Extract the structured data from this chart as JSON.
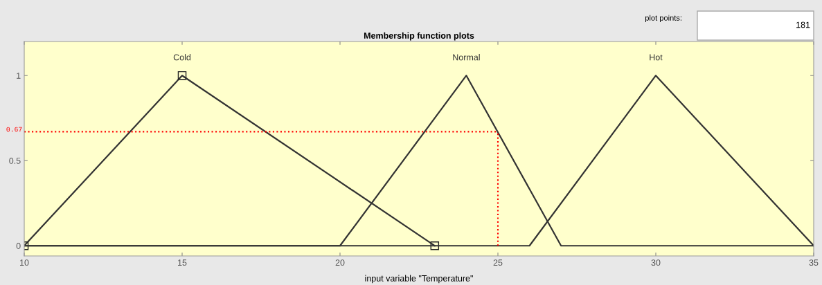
{
  "chart_data": {
    "type": "line",
    "title": "Membership function plots",
    "xlabel": "input variable \"Temperature\"",
    "xlim": [
      10,
      35
    ],
    "ylim": [
      -0.06,
      1.2
    ],
    "xticks": [
      10,
      15,
      20,
      25,
      30,
      35
    ],
    "yticks": [
      0,
      0.5,
      1
    ],
    "grid": false,
    "line_style": "solid",
    "series": [
      {
        "name": "Cold",
        "color": "#333333",
        "marker": "square",
        "x": [
          10,
          15,
          23
        ],
        "values": [
          0,
          1,
          0
        ]
      },
      {
        "name": "Normal",
        "color": "#333333",
        "marker": "none",
        "x": [
          10,
          20,
          24,
          27,
          35
        ],
        "values": [
          0,
          0,
          1,
          0,
          0
        ]
      },
      {
        "name": "Hot",
        "color": "#333333",
        "marker": "none",
        "x": [
          10,
          26,
          30,
          35
        ],
        "values": [
          0,
          0,
          1,
          0
        ]
      }
    ],
    "ref_lines": [
      {
        "axis": "y",
        "value": 0.67,
        "label": "0.67",
        "color": "#ff0000",
        "line_style": "dotted"
      },
      {
        "axis": "x",
        "value": 25,
        "color": "#ff0000",
        "line_style": "dotted"
      }
    ],
    "annotations": [
      "plot points:",
      "181"
    ]
  }
}
